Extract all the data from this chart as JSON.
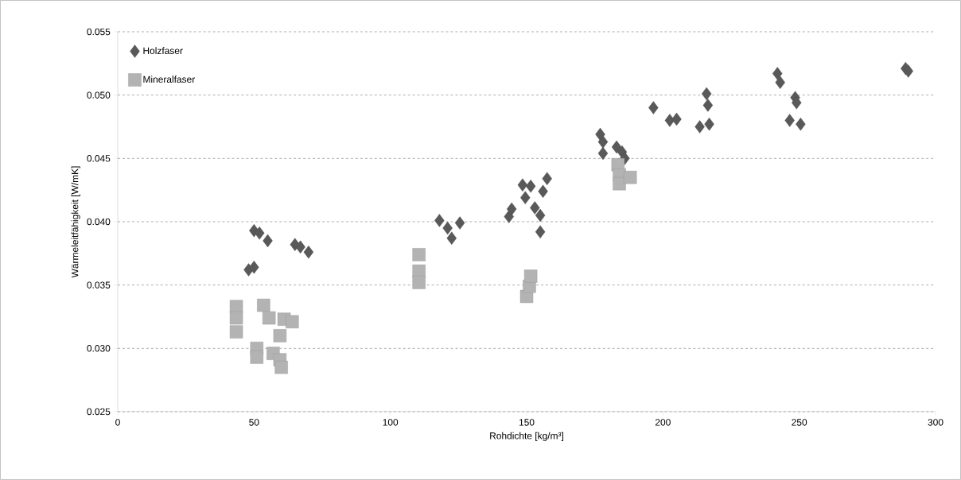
{
  "chart_data": {
    "type": "scatter",
    "xlabel": "Rohdichte [kg/m³]",
    "ylabel": "Wärmeleitfähigkeit [W/mK]",
    "xlim": [
      0,
      300
    ],
    "xticks": [
      0,
      50,
      100,
      150,
      200,
      250,
      300
    ],
    "ylim": [
      0.025,
      0.055
    ],
    "yticks": [
      {
        "value": 0.025,
        "label": "0.025"
      },
      {
        "value": 0.03,
        "label": "0.030"
      },
      {
        "value": 0.035,
        "label": "0.035"
      },
      {
        "value": 0.04,
        "label": "0.040"
      },
      {
        "value": 0.045,
        "label": "0.045"
      },
      {
        "value": 0.05,
        "label": "0.050"
      },
      {
        "value": 0.055,
        "label": "0.055"
      }
    ],
    "grid": "y",
    "legend": "top left",
    "series": [
      {
        "name": "Holzfaser",
        "color": "#595959",
        "marker": "diamond",
        "x": [
          48,
          50,
          50,
          52,
          55,
          65,
          67,
          70,
          118,
          121,
          122.5,
          125.5,
          143.5,
          144.5,
          148.5,
          149.5,
          151.5,
          153,
          155,
          155,
          156,
          157.5,
          177,
          178,
          178,
          183,
          185,
          186,
          196.5,
          202.5,
          205,
          213.5,
          216,
          216.5,
          217,
          242,
          243,
          246.5,
          248.5,
          249,
          250.5,
          289,
          290
        ],
        "values": [
          0.0362,
          0.0364,
          0.0393,
          0.0391,
          0.0385,
          0.0382,
          0.038,
          0.0376,
          0.0401,
          0.0395,
          0.0387,
          0.0399,
          0.0404,
          0.041,
          0.0429,
          0.0419,
          0.0428,
          0.0411,
          0.0405,
          0.0392,
          0.0424,
          0.0434,
          0.0469,
          0.0463,
          0.0454,
          0.0459,
          0.0455,
          0.045,
          0.049,
          0.048,
          0.0481,
          0.0475,
          0.0501,
          0.0492,
          0.0477,
          0.0517,
          0.051,
          0.048,
          0.0498,
          0.0494,
          0.0477,
          0.0521,
          0.0519
        ]
      },
      {
        "name": "Mineralfaser",
        "color": "#b3b3b3",
        "marker": "square",
        "x": [
          43.5,
          43.5,
          43.5,
          51,
          51,
          53.5,
          55.5,
          57,
          59.5,
          59.5,
          60,
          61,
          64,
          110.5,
          110.5,
          110.5,
          150,
          151,
          151.5,
          183.5,
          184,
          184,
          188
        ],
        "values": [
          0.0333,
          0.0324,
          0.0313,
          0.03,
          0.0293,
          0.0334,
          0.0324,
          0.0296,
          0.031,
          0.0291,
          0.0285,
          0.0323,
          0.0321,
          0.0374,
          0.0361,
          0.0352,
          0.0341,
          0.0349,
          0.0357,
          0.0445,
          0.0437,
          0.043,
          0.0435
        ]
      }
    ]
  }
}
